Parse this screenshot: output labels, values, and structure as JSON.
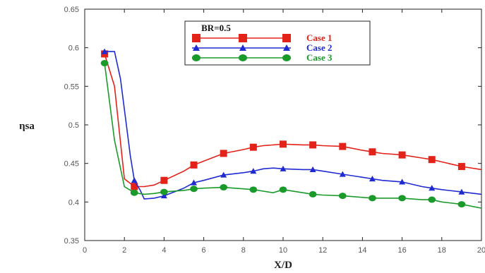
{
  "chart_data": {
    "type": "line",
    "xlabel": "X/D",
    "ylabel": "ηsa",
    "xlim": [
      0,
      20
    ],
    "ylim": [
      0.35,
      0.65
    ],
    "xticks": [
      "0",
      "2",
      "4",
      "6",
      "8",
      "10",
      "12",
      "14",
      "16",
      "18",
      "20"
    ],
    "yticks": [
      "0.35",
      "0.4",
      "0.45",
      "0.5",
      "0.55",
      "0.6",
      "0.65"
    ],
    "grid": false,
    "legend": {
      "title": "BR=0.5",
      "placement": "top-center"
    },
    "series": [
      {
        "name": "Case 1",
        "color": "#e32219",
        "marker": "square",
        "x": [
          1.0,
          1.5,
          2.0,
          2.5,
          3.0,
          3.5,
          4.0,
          5.0,
          5.5,
          6.0,
          7.0,
          8.0,
          8.5,
          9.0,
          10.0,
          11.0,
          11.5,
          12.0,
          13.0,
          14.0,
          14.5,
          15.0,
          16.0,
          17.0,
          17.5,
          18.0,
          19.0,
          20.0
        ],
        "values": [
          0.592,
          0.55,
          0.43,
          0.42,
          0.42,
          0.422,
          0.428,
          0.44,
          0.448,
          0.453,
          0.463,
          0.468,
          0.471,
          0.473,
          0.475,
          0.474,
          0.474,
          0.473,
          0.472,
          0.467,
          0.465,
          0.463,
          0.461,
          0.457,
          0.455,
          0.452,
          0.446,
          0.442
        ]
      },
      {
        "name": "Case 2",
        "color": "#1f2bd0",
        "marker": "triangle",
        "x": [
          1.0,
          1.5,
          1.8,
          2.0,
          2.3,
          2.5,
          2.8,
          3.0,
          3.5,
          4.0,
          5.0,
          5.5,
          6.0,
          7.0,
          8.0,
          8.5,
          9.0,
          9.5,
          10.0,
          11.0,
          11.5,
          12.0,
          13.0,
          14.0,
          14.5,
          15.0,
          16.0,
          17.0,
          17.5,
          18.0,
          19.0,
          20.0
        ],
        "values": [
          0.595,
          0.595,
          0.56,
          0.52,
          0.46,
          0.428,
          0.415,
          0.404,
          0.405,
          0.408,
          0.418,
          0.425,
          0.428,
          0.435,
          0.438,
          0.44,
          0.443,
          0.444,
          0.443,
          0.442,
          0.442,
          0.44,
          0.436,
          0.432,
          0.43,
          0.428,
          0.426,
          0.42,
          0.418,
          0.416,
          0.413,
          0.41
        ]
      },
      {
        "name": "Case 3",
        "color": "#1a9a2a",
        "marker": "circle",
        "x": [
          1.0,
          1.5,
          2.0,
          2.5,
          3.0,
          3.5,
          4.0,
          5.0,
          5.5,
          6.0,
          7.0,
          7.5,
          8.0,
          8.5,
          9.0,
          9.5,
          10.0,
          11.0,
          11.5,
          12.0,
          13.0,
          14.0,
          14.5,
          15.0,
          16.0,
          17.0,
          17.5,
          18.0,
          19.0,
          20.0
        ],
        "values": [
          0.58,
          0.48,
          0.42,
          0.412,
          0.41,
          0.411,
          0.413,
          0.415,
          0.417,
          0.418,
          0.419,
          0.418,
          0.417,
          0.416,
          0.414,
          0.412,
          0.416,
          0.412,
          0.41,
          0.409,
          0.408,
          0.406,
          0.405,
          0.405,
          0.405,
          0.403,
          0.403,
          0.4,
          0.397,
          0.392
        ]
      }
    ]
  }
}
